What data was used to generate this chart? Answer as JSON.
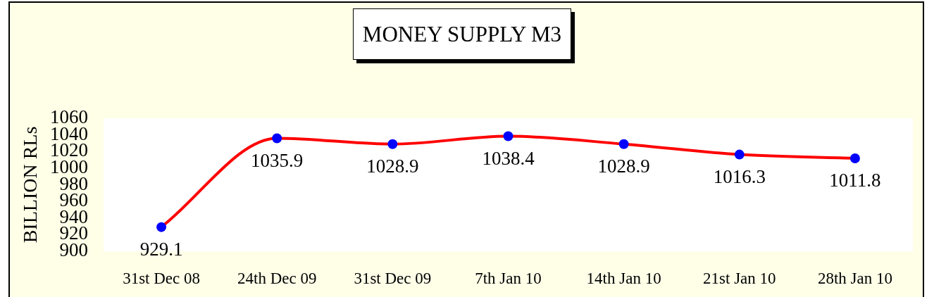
{
  "chart_data": {
    "type": "line",
    "title": "MONEY SUPPLY M3",
    "ylabel": "BILLION RLs",
    "categories": [
      "31st Dec 08",
      "24th Dec 09",
      "31st Dec 09",
      "7th Jan 10",
      "14th Jan 10",
      "21st Jan 10",
      "28th Jan 10"
    ],
    "series": [
      {
        "color": "#ff0000",
        "colors": [
          "#0000ff",
          "#0000ff",
          "#0000ff",
          "#0000ff",
          "#0000ff",
          "#0000ff",
          "#0000ff"
        ],
        "values": [
          929.1,
          1035.9,
          1028.9,
          1038.4,
          1028.9,
          1016.3,
          1011.8
        ]
      }
    ],
    "ylim": [
      900,
      1060
    ],
    "yticks": [
      900,
      920,
      940,
      960,
      980,
      1000,
      1020,
      1040,
      1060
    ],
    "marker": "circle",
    "line_style": "solid",
    "data_labels": true
  }
}
